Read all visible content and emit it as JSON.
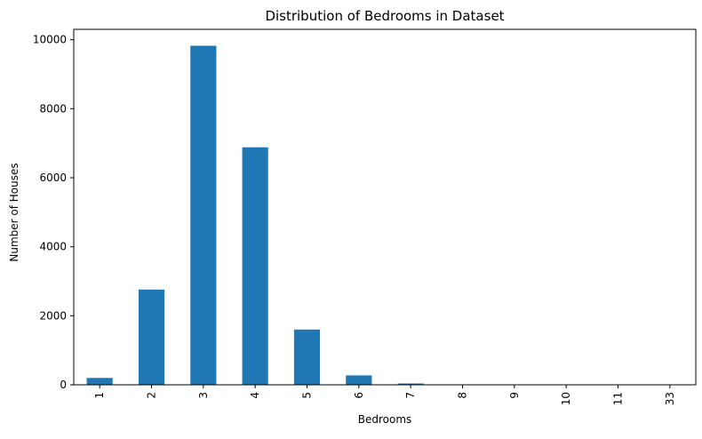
{
  "chart_data": {
    "type": "bar",
    "title": "Distribution of Bedrooms in Dataset",
    "xlabel": "Bedrooms",
    "ylabel": "Number of Houses",
    "categories": [
      "1",
      "2",
      "3",
      "4",
      "5",
      "6",
      "7",
      "8",
      "9",
      "10",
      "11",
      "33"
    ],
    "values": [
      199,
      2760,
      9824,
      6882,
      1601,
      272,
      38,
      13,
      6,
      3,
      1,
      1
    ],
    "ylim": [
      0,
      10300
    ],
    "yticks": [
      0,
      2000,
      4000,
      6000,
      8000,
      10000
    ],
    "ytick_labels": [
      "0",
      "2000",
      "4000",
      "6000",
      "8000",
      "10000"
    ],
    "xtick_rotation": "vertical",
    "grid": false,
    "legend": "none",
    "bar_color": "#1f77b4"
  }
}
